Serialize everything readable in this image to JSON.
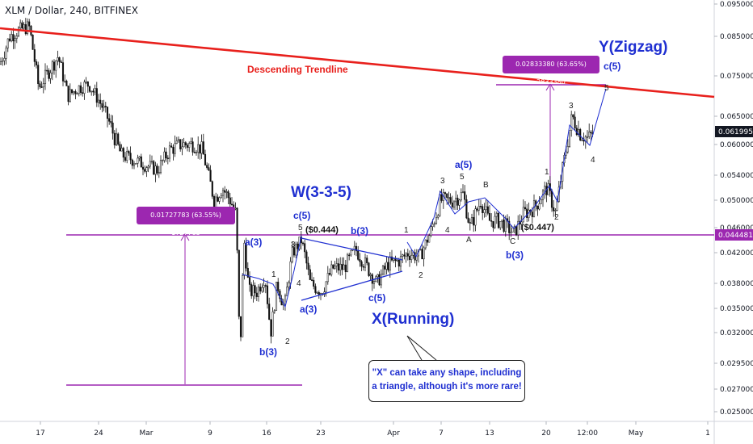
{
  "header": {
    "title": "XLM / Dollar, 240, BITFINEX"
  },
  "chart_data": {
    "type": "line",
    "symbol": "XLM / Dollar",
    "interval": "240",
    "exchange": "BITFINEX",
    "x_ticks": [
      "17",
      "24",
      "Mar",
      "9",
      "16",
      "23",
      "Apr",
      "7",
      "13",
      "20",
      "12:00",
      "May",
      "1"
    ],
    "y_ticks": [
      "0.09500000",
      "0.08500000",
      "0.07500000",
      "0.06500000",
      "0.06000000",
      "0.05400000",
      "0.05000000",
      "0.04600000",
      "0.04200000",
      "0.03800000",
      "0.03500000",
      "0.03200000",
      "0.02950000",
      "0.02700000",
      "0.02500000"
    ],
    "current_price": "0.06199500",
    "level_price": "0.04448131",
    "price_path": [
      {
        "x": 0,
        "y": 0.078
      },
      {
        "x": 12,
        "y": 0.085
      },
      {
        "x": 24,
        "y": 0.087
      },
      {
        "x": 36,
        "y": 0.088
      },
      {
        "x": 48,
        "y": 0.072
      },
      {
        "x": 60,
        "y": 0.076
      },
      {
        "x": 72,
        "y": 0.08
      },
      {
        "x": 84,
        "y": 0.07
      },
      {
        "x": 96,
        "y": 0.072
      },
      {
        "x": 110,
        "y": 0.073
      },
      {
        "x": 125,
        "y": 0.068
      },
      {
        "x": 140,
        "y": 0.062
      },
      {
        "x": 150,
        "y": 0.058
      },
      {
        "x": 165,
        "y": 0.057
      },
      {
        "x": 180,
        "y": 0.056
      },
      {
        "x": 195,
        "y": 0.055
      },
      {
        "x": 210,
        "y": 0.059
      },
      {
        "x": 225,
        "y": 0.06
      },
      {
        "x": 240,
        "y": 0.06
      },
      {
        "x": 250,
        "y": 0.059
      },
      {
        "x": 258,
        "y": 0.054
      },
      {
        "x": 265,
        "y": 0.05
      },
      {
        "x": 275,
        "y": 0.052
      },
      {
        "x": 285,
        "y": 0.05
      },
      {
        "x": 292,
        "y": 0.048
      },
      {
        "x": 297,
        "y": 0.029
      },
      {
        "x": 302,
        "y": 0.044
      },
      {
        "x": 308,
        "y": 0.037
      },
      {
        "x": 318,
        "y": 0.037
      },
      {
        "x": 328,
        "y": 0.039
      },
      {
        "x": 335,
        "y": 0.032
      },
      {
        "x": 343,
        "y": 0.038
      },
      {
        "x": 352,
        "y": 0.035
      },
      {
        "x": 362,
        "y": 0.042
      },
      {
        "x": 373,
        "y": 0.044
      },
      {
        "x": 384,
        "y": 0.038
      },
      {
        "x": 398,
        "y": 0.037
      },
      {
        "x": 412,
        "y": 0.04
      },
      {
        "x": 426,
        "y": 0.04
      },
      {
        "x": 440,
        "y": 0.0425
      },
      {
        "x": 455,
        "y": 0.04
      },
      {
        "x": 466,
        "y": 0.038
      },
      {
        "x": 480,
        "y": 0.0405
      },
      {
        "x": 495,
        "y": 0.041
      },
      {
        "x": 505,
        "y": 0.042
      },
      {
        "x": 520,
        "y": 0.0415
      },
      {
        "x": 532,
        "y": 0.045
      },
      {
        "x": 545,
        "y": 0.05
      },
      {
        "x": 560,
        "y": 0.05
      },
      {
        "x": 573,
        "y": 0.051
      },
      {
        "x": 582,
        "y": 0.046
      },
      {
        "x": 595,
        "y": 0.05
      },
      {
        "x": 605,
        "y": 0.047
      },
      {
        "x": 618,
        "y": 0.047
      },
      {
        "x": 628,
        "y": 0.046
      },
      {
        "x": 636,
        "y": 0.045
      },
      {
        "x": 648,
        "y": 0.048
      },
      {
        "x": 662,
        "y": 0.049
      },
      {
        "x": 677,
        "y": 0.052
      },
      {
        "x": 688,
        "y": 0.048
      },
      {
        "x": 697,
        "y": 0.056
      },
      {
        "x": 708,
        "y": 0.065
      },
      {
        "x": 718,
        "y": 0.062
      },
      {
        "x": 728,
        "y": 0.061
      },
      {
        "x": 734,
        "y": 0.062
      }
    ]
  },
  "drawings": {
    "trendline_label": "Descending Trendline",
    "measure_left": "0.01727783 (63.55%) 1727783",
    "measure_right": "0.02833380 (63.65%) 2833380",
    "price_left_note": "($0.444)",
    "price_right_note": "($0.447)",
    "callout_line1": "\"X\" can take any shape, including",
    "callout_line2": "a triangle, although it's more rare!"
  },
  "wave_labels": {
    "big": [
      {
        "text": "W(3-3-5)",
        "size": 19
      },
      {
        "text": "X(Running)",
        "size": 19
      },
      {
        "text": "Y(Zigzag)",
        "size": 19
      }
    ],
    "blue": [
      "a(3)",
      "b(3)",
      "c(5)",
      "a(3)",
      "b(3)",
      "c(5)",
      "a(5)",
      "b(3)",
      "c(5)"
    ],
    "black": [
      "1",
      "2",
      "3",
      "4",
      "5",
      "1",
      "2",
      "3",
      "4",
      "5",
      "A",
      "B",
      "C",
      "1",
      "2",
      "3",
      "4",
      "5",
      "1",
      "2",
      "3",
      "4",
      "5"
    ]
  },
  "colors": {
    "trendline": "#e8201c",
    "level": "#9c27b0",
    "wave_blue": "#1f2fd1",
    "candles": "#111111"
  }
}
